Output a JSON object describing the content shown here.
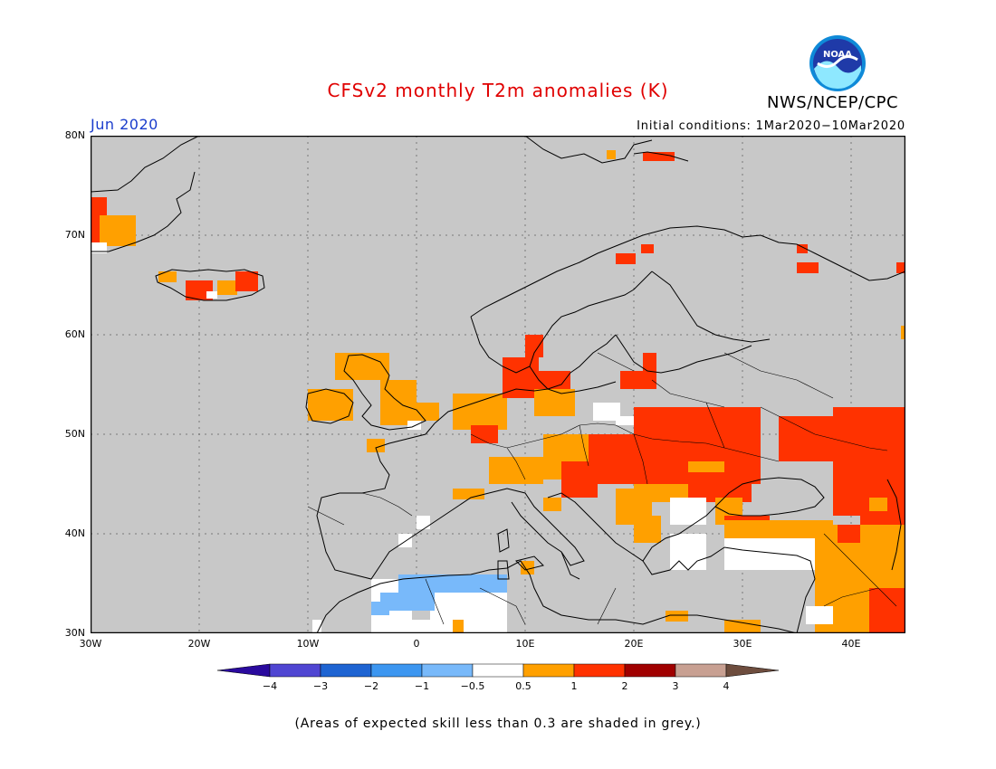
{
  "title": "CFSv2 monthly T2m anomalies (K)",
  "period": "Jun 2020",
  "initial_conditions": "Initial conditions: 1Mar2020−10Mar2020",
  "organization": "NWS/NCEP/CPC",
  "logo_text": "NOAA",
  "footnote": "(Areas of expected skill less than 0.3 are shaded in grey.)",
  "map": {
    "lat_labels": [
      "80N",
      "70N",
      "60N",
      "50N",
      "40N",
      "30N"
    ],
    "lon_labels": [
      "30W",
      "20W",
      "10W",
      "0",
      "10E",
      "20E",
      "30E",
      "40E"
    ],
    "background_color": "#c8c8c8",
    "coastline_color": "#000000"
  },
  "legend": {
    "tick_labels": [
      "−4",
      "−3",
      "−2",
      "−1",
      "−0.5",
      "0.5",
      "1",
      "2",
      "3",
      "4"
    ],
    "colors": [
      "#2a0a9e",
      "#5046d2",
      "#1e64d2",
      "#3c96f0",
      "#78b9fa",
      "#ffffff",
      "#ffa000",
      "#ff3200",
      "#a00000",
      "#c8a092",
      "#6e4d3e"
    ]
  },
  "anomaly_regions": [
    {
      "name": "greenland",
      "category": "1",
      "color": "#ffa000"
    },
    {
      "name": "iceland",
      "category": "2",
      "color": "#ff3200"
    },
    {
      "name": "british-isles",
      "category": "1",
      "color": "#ffa000"
    },
    {
      "name": "central-europe",
      "category": "2",
      "color": "#ff3200"
    },
    {
      "name": "eastern-europe",
      "category": "2",
      "color": "#ff3200"
    },
    {
      "name": "turkey-middle-east",
      "category": "1",
      "color": "#ffa000"
    },
    {
      "name": "north-africa",
      "category": "-1",
      "color": "#78b9fa"
    }
  ]
}
